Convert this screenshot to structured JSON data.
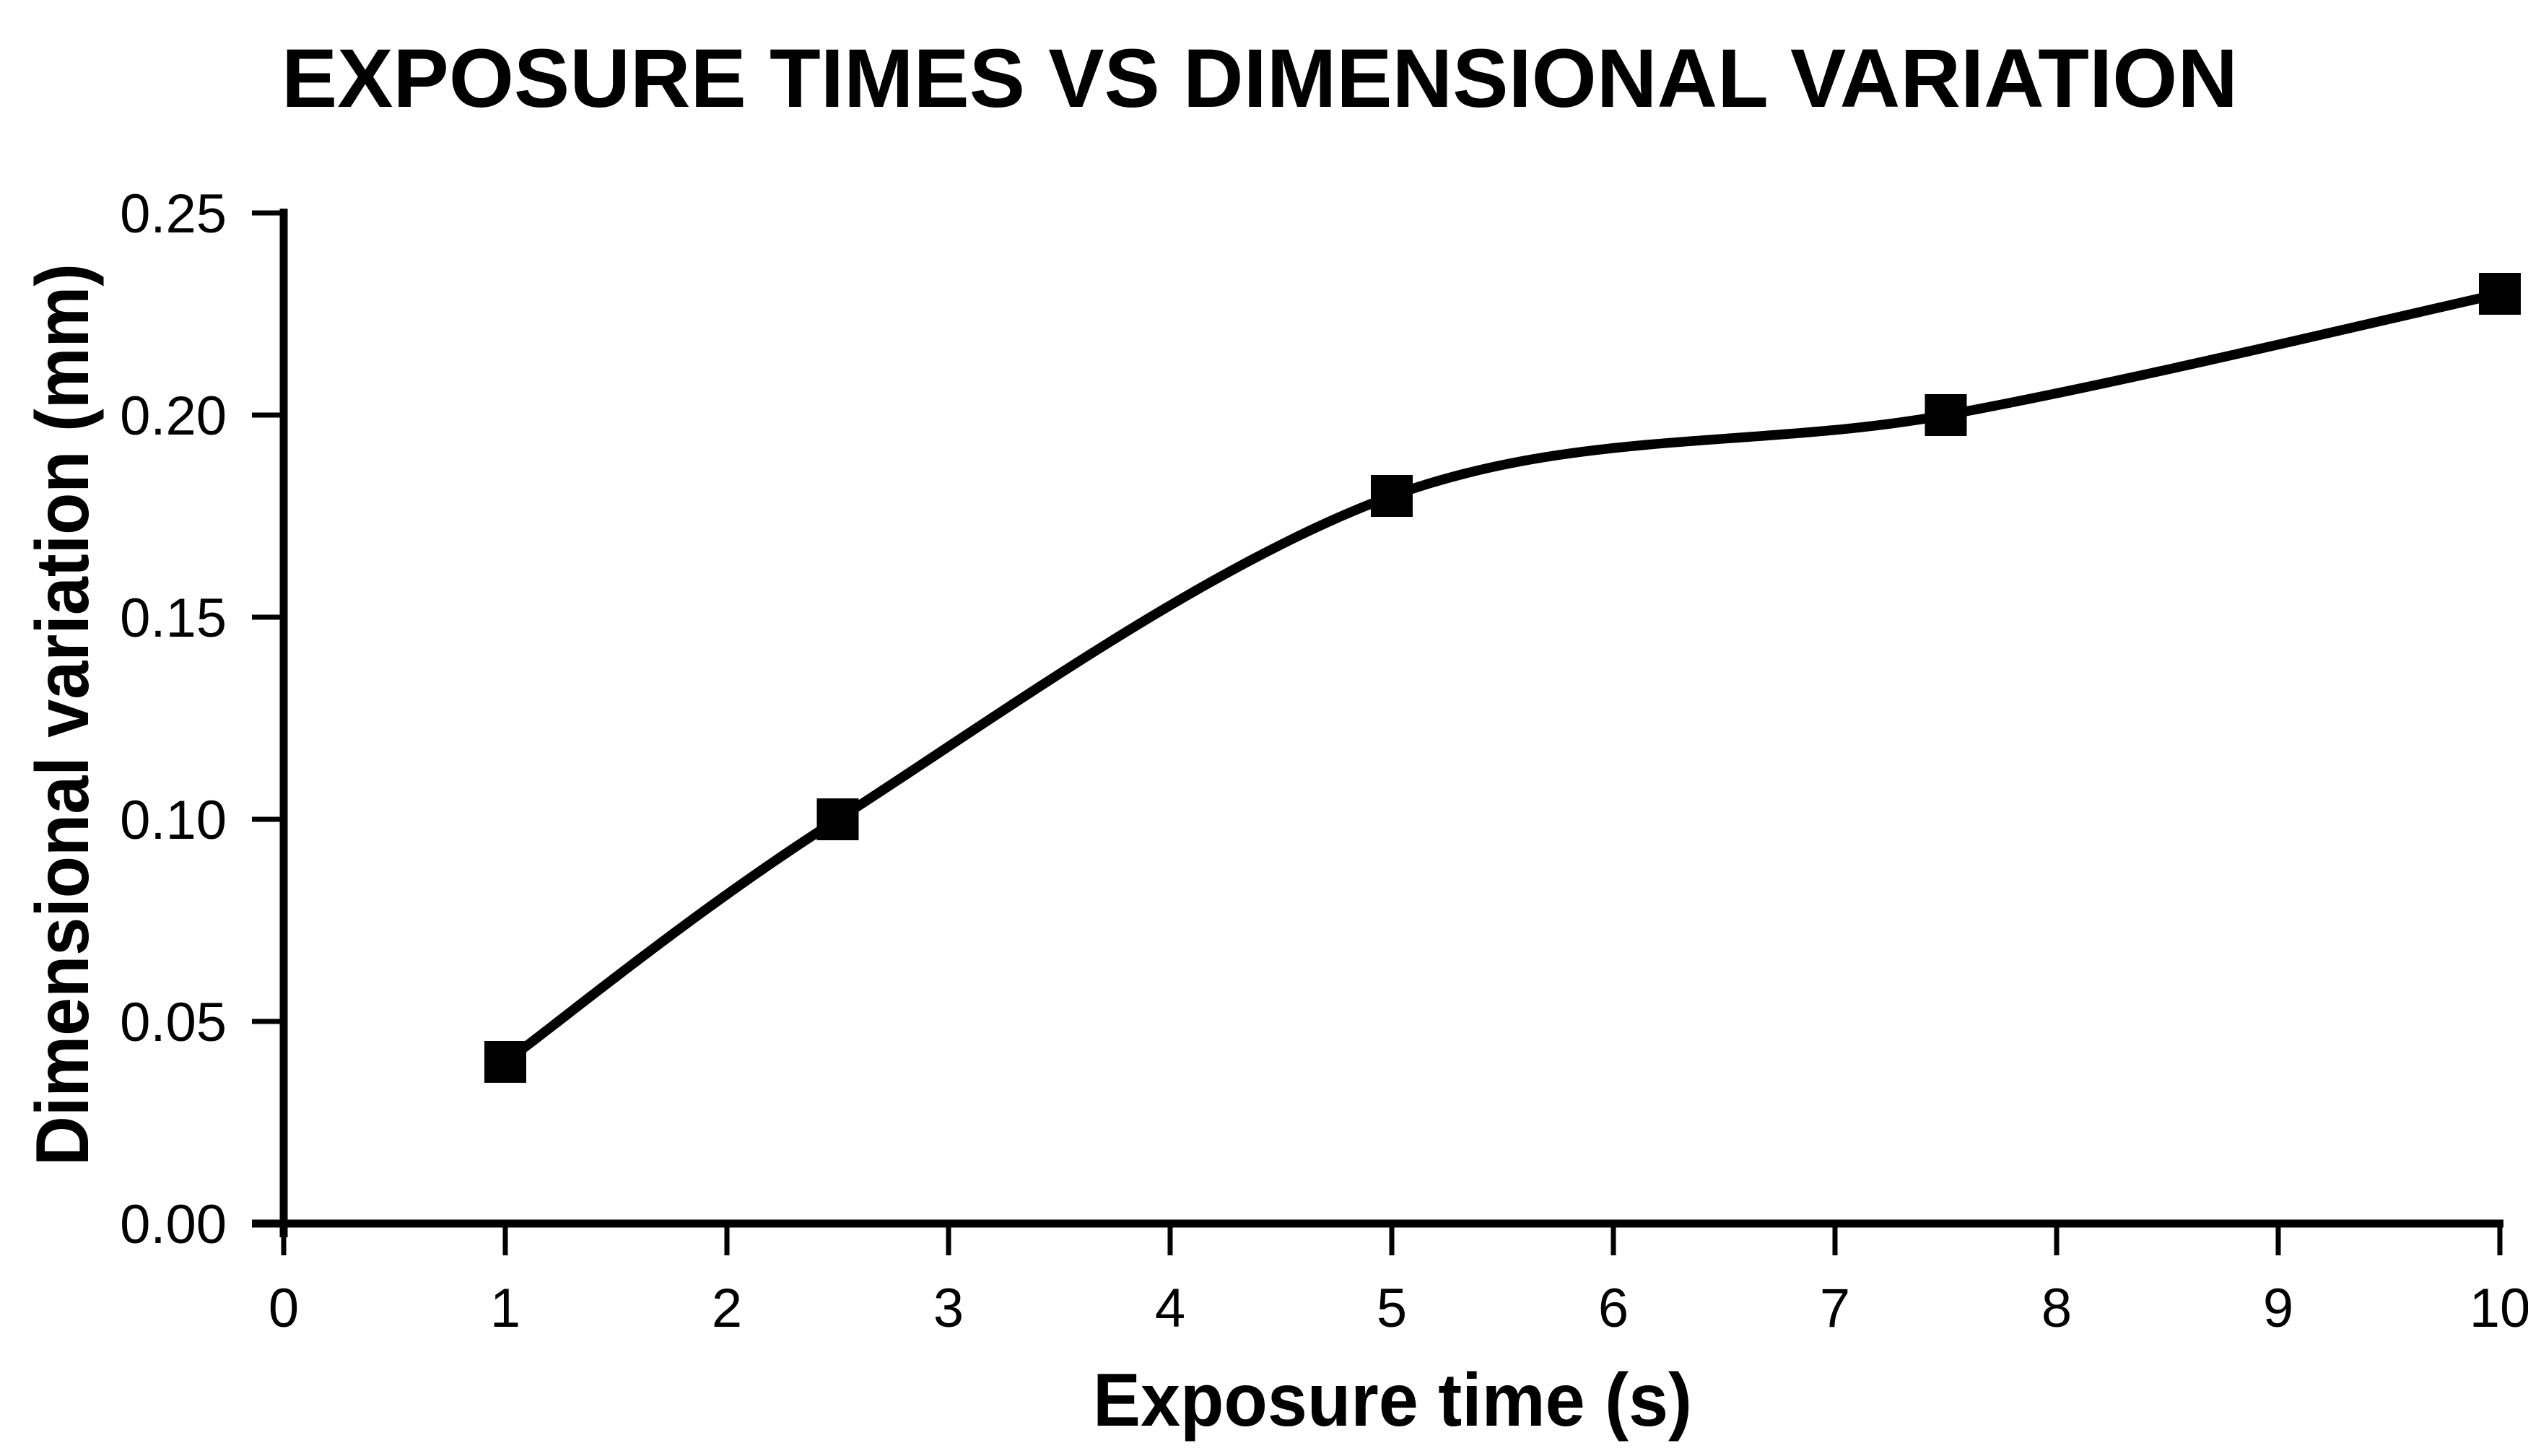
{
  "colors": {
    "foreground": "#000000",
    "background": "#FFFFFF"
  },
  "chart_data": {
    "type": "line",
    "title": "EXPOSURE TIMES VS DIMENSIONAL VARIATION",
    "xlabel": "Exposure time (s)",
    "ylabel": "Dimensional variation (mm)",
    "x": [
      1,
      2.5,
      5,
      7.5,
      10
    ],
    "y": [
      0.04,
      0.1,
      0.18,
      0.2,
      0.23
    ],
    "xlim": [
      0,
      10
    ],
    "ylim": [
      0,
      0.25
    ],
    "x_tick_labels": [
      "0",
      "1",
      "2",
      "3",
      "4",
      "5",
      "6",
      "7",
      "8",
      "9",
      "10"
    ],
    "y_tick_labels": [
      "0.00",
      "0.05",
      "0.10",
      "0.15",
      "0.20",
      "0.25"
    ],
    "smooth_line": true,
    "marker": "filled-square",
    "line_color": "#000000",
    "marker_color": "#000000",
    "grid": false,
    "legend_position": "none"
  }
}
